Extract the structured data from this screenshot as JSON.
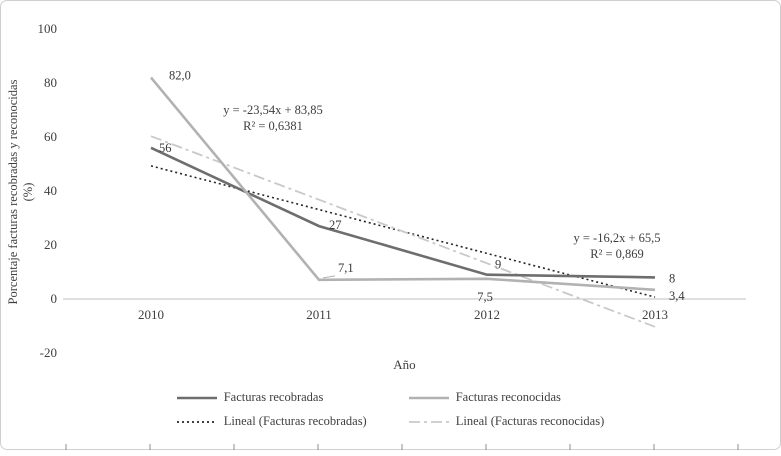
{
  "chart_data": {
    "type": "line",
    "xlabel": "Año",
    "ylabel_line1": "Porcentaje facturas recobradas y reconocidas",
    "ylabel_line2": "(%)",
    "x_categories": [
      "2010",
      "2011",
      "2012",
      "2013"
    ],
    "ytick_values": [
      100,
      80,
      60,
      40,
      20,
      0,
      -20
    ],
    "ylim": [
      -20,
      100
    ],
    "grid": false,
    "legend_position": "bottom",
    "axis_color": "#bfbfbf",
    "text_color": "#3f3f3f",
    "series": [
      {
        "name": "Facturas recobradas",
        "type": "data",
        "values": [
          56,
          27,
          9,
          8
        ],
        "color": "#6e6e6e",
        "width": 2.6,
        "dash": "",
        "point_labels": [
          {
            "text": "56",
            "dx": 8,
            "dy": 4,
            "anchor": "start"
          },
          {
            "text": "27",
            "dx": 10,
            "dy": 3,
            "anchor": "start"
          },
          {
            "text": "9",
            "dx": 8,
            "dy": -6,
            "anchor": "start"
          },
          {
            "text": "8",
            "dx": 14,
            "dy": 5,
            "anchor": "start"
          }
        ]
      },
      {
        "name": "Facturas reconocidas",
        "type": "data",
        "values": [
          82.0,
          7.1,
          7.5,
          3.4
        ],
        "color": "#b2b2b2",
        "width": 2.6,
        "dash": "",
        "point_labels": [
          {
            "text": "82,0",
            "dx": 18,
            "dy": 2,
            "anchor": "start"
          },
          {
            "text": "7,1",
            "dx": 19,
            "dy": -8,
            "anchor": "start",
            "leader": true
          },
          {
            "text": "7,5",
            "dx": -2,
            "dy": 22,
            "anchor": "middle"
          },
          {
            "text": "3,4",
            "dx": 14,
            "dy": 10,
            "anchor": "start"
          }
        ]
      },
      {
        "name": "Lineal (Facturas recobradas)",
        "type": "trend",
        "slope": -16.2,
        "intercept": 65.5,
        "color": "#262626",
        "width": 1.6,
        "dash": "2 3"
      },
      {
        "name": "Lineal (Facturas reconocidas)",
        "type": "trend",
        "slope": -23.54,
        "intercept": 83.85,
        "color": "#c9c9c9",
        "width": 1.8,
        "dash": "11 4 3 4"
      }
    ],
    "annotations": [
      {
        "line1": "y = -23,54x + 83,85",
        "line2": "R² = 0,6381"
      },
      {
        "line1": "y = -16,2x + 65,5",
        "line2": "R² = 0,869"
      }
    ]
  },
  "legend": {
    "items": [
      {
        "label": "Facturas recobradas"
      },
      {
        "label": "Facturas reconocidas"
      },
      {
        "label": "Lineal (Facturas recobradas)"
      },
      {
        "label": "Lineal (Facturas reconocidas)"
      }
    ]
  }
}
